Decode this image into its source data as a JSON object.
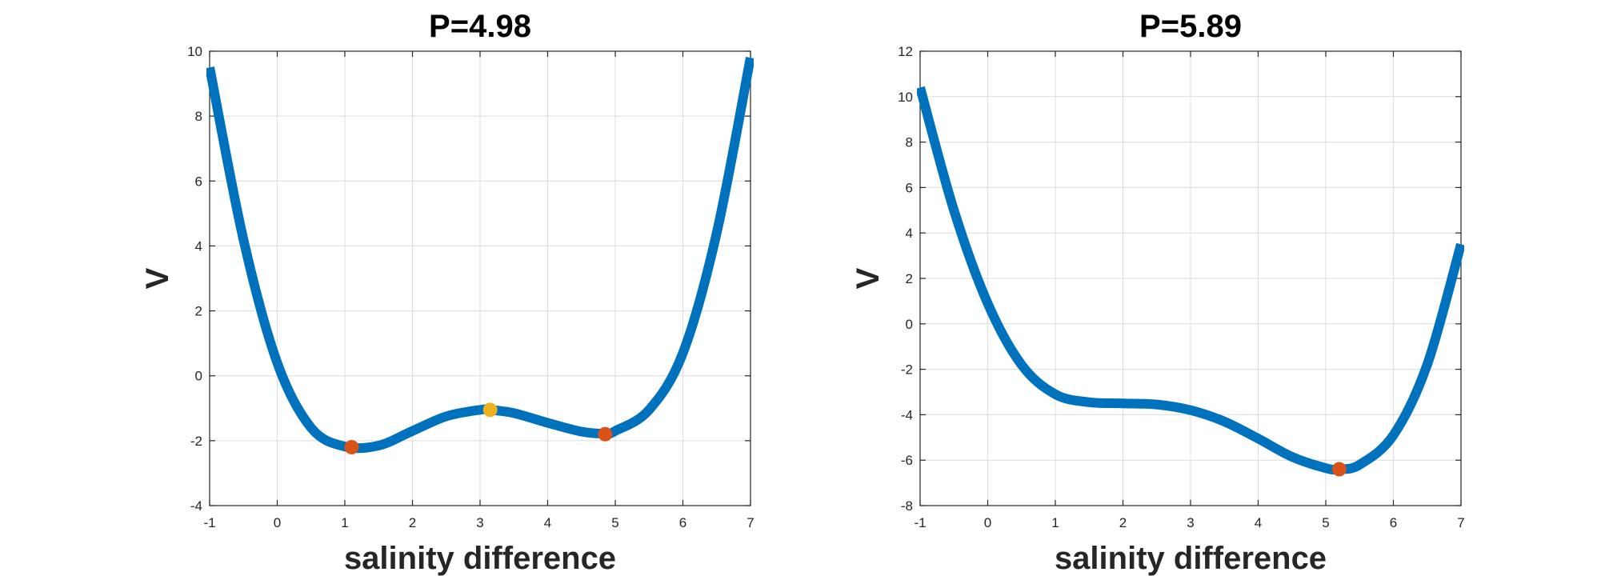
{
  "chart_data": [
    {
      "type": "line",
      "title": "P=4.98",
      "xlabel": "salinity difference",
      "ylabel": "V",
      "xlim": [
        -1,
        7
      ],
      "ylim": [
        -4,
        10
      ],
      "xticks": [
        -1,
        0,
        1,
        2,
        3,
        4,
        5,
        6,
        7
      ],
      "yticks": [
        -4,
        -2,
        0,
        2,
        4,
        6,
        8,
        10
      ],
      "grid": true,
      "series": [
        {
          "color": "#0072BD",
          "x": [
            -1,
            -0.5,
            0,
            0.5,
            1,
            1.5,
            2,
            2.5,
            3,
            3.15,
            3.5,
            4,
            4.5,
            4.85,
            5,
            5.5,
            6,
            6.5,
            7
          ],
          "y": [
            9.5,
            4.2,
            0.4,
            -1.6,
            -2.18,
            -2.15,
            -1.7,
            -1.25,
            -1.05,
            -1.05,
            -1.15,
            -1.45,
            -1.72,
            -1.78,
            -1.7,
            -1.05,
            0.7,
            4.4,
            9.8
          ]
        }
      ],
      "points": [
        {
          "x": 1.1,
          "y": -2.2,
          "color": "#D95319"
        },
        {
          "x": 3.15,
          "y": -1.05,
          "color": "#EDB120"
        },
        {
          "x": 4.85,
          "y": -1.8,
          "color": "#D95319"
        }
      ]
    },
    {
      "type": "line",
      "title": "P=5.89",
      "xlabel": "salinity difference",
      "ylabel": "V",
      "xlim": [
        -1,
        7
      ],
      "ylim": [
        -8,
        12
      ],
      "xticks": [
        -1,
        0,
        1,
        2,
        3,
        4,
        5,
        6,
        7
      ],
      "yticks": [
        -8,
        -6,
        -4,
        -2,
        0,
        2,
        4,
        6,
        8,
        10,
        12
      ],
      "grid": true,
      "series": [
        {
          "color": "#0072BD",
          "x": [
            -1,
            -0.5,
            0,
            0.5,
            1,
            1.5,
            2,
            2.5,
            3,
            3.5,
            4,
            4.5,
            5,
            5.2,
            5.5,
            6,
            6.5,
            7
          ],
          "y": [
            10.4,
            5.0,
            0.9,
            -1.8,
            -3.1,
            -3.45,
            -3.5,
            -3.55,
            -3.8,
            -4.3,
            -5.05,
            -5.85,
            -6.35,
            -6.4,
            -6.2,
            -4.9,
            -1.8,
            3.5
          ]
        }
      ],
      "points": [
        {
          "x": 5.2,
          "y": -6.4,
          "color": "#D95319"
        }
      ]
    }
  ]
}
